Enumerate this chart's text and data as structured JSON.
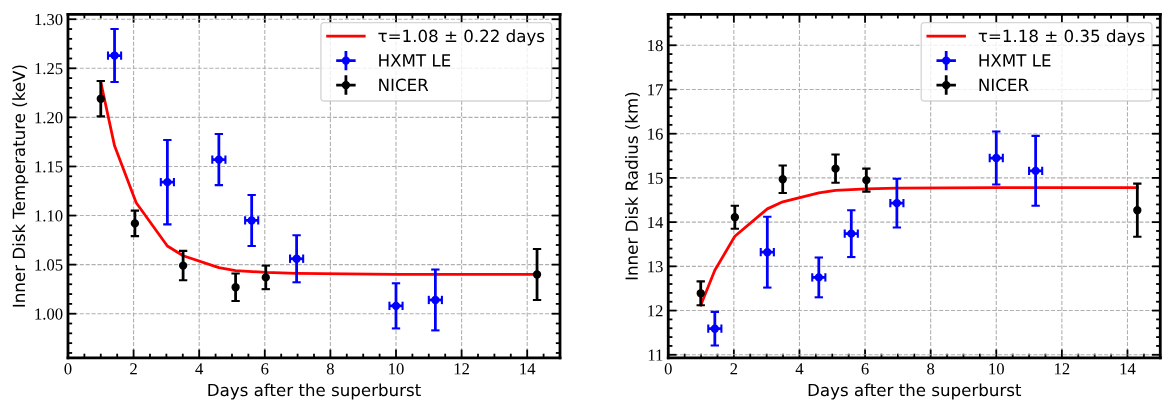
{
  "chart_data": [
    {
      "type": "scatter",
      "xlabel": "Days after the superburst",
      "ylabel": "Inner Disk Temperature (keV)",
      "xlim": [
        0,
        15
      ],
      "ylim": [
        0.955,
        1.305
      ],
      "xticks": [
        0,
        2,
        4,
        6,
        8,
        10,
        12,
        14
      ],
      "yticks": [
        {
          "value": 1.0,
          "label": "1.00"
        },
        1.05,
        {
          "value": 1.1,
          "label": "1.10"
        },
        1.15,
        {
          "value": 1.2,
          "label": "1.20"
        },
        1.25,
        {
          "value": 1.3,
          "label": "1.30"
        }
      ],
      "grid": true,
      "legend": "top right",
      "series": [
        {
          "name": "τ=1.08 ± 0.22 days",
          "type": "line",
          "color": "#ff0000",
          "x": [
            1.0,
            1.42,
            2.08,
            3.03,
            3.51,
            4.6,
            5.11,
            6.03,
            6.97,
            10.0,
            14.3
          ],
          "values": [
            1.236,
            1.171,
            1.113,
            1.069,
            1.059,
            1.047,
            1.044,
            1.042,
            1.041,
            1.04,
            1.04
          ]
        },
        {
          "name": "HXMT LE",
          "color": "#0000ff",
          "marker": "circle",
          "x": [
            1.42,
            3.03,
            4.6,
            5.6,
            6.97,
            10.0,
            11.2
          ],
          "values": [
            1.263,
            1.134,
            1.157,
            1.095,
            1.056,
            1.008,
            1.014
          ],
          "errors": [
            0.027,
            0.043,
            0.026,
            0.026,
            0.024,
            0.023,
            0.031
          ],
          "xerrors": [
            0.2,
            0.2,
            0.2,
            0.2,
            0.2,
            0.2,
            0.2
          ]
        },
        {
          "name": "NICER",
          "color": "#000000",
          "marker": "circle",
          "x": [
            1.0,
            2.04,
            3.51,
            5.11,
            6.03,
            14.3
          ],
          "values": [
            1.219,
            1.092,
            1.049,
            1.027,
            1.037,
            1.04
          ],
          "errors": [
            0.018,
            0.013,
            0.015,
            0.014,
            0.012,
            0.026
          ]
        }
      ]
    },
    {
      "type": "scatter",
      "xlabel": "Days after the superburst",
      "ylabel": "Inner Disk Radius (km)",
      "xlim": [
        0,
        15
      ],
      "ylim": [
        10.93,
        18.7
      ],
      "xticks": [
        0,
        2,
        4,
        6,
        8,
        10,
        12,
        14
      ],
      "yticks": [
        11,
        12,
        13,
        14,
        15,
        16,
        17,
        18
      ],
      "grid": true,
      "legend": "top right",
      "series": [
        {
          "name": "τ=1.18 ± 0.35 days",
          "type": "line",
          "color": "#ff0000",
          "x": [
            0.99,
            1.42,
            2.03,
            3.02,
            3.49,
            4.59,
            5.1,
            6.04,
            6.97,
            10.0,
            14.3
          ],
          "values": [
            12.12,
            12.91,
            13.68,
            14.3,
            14.46,
            14.66,
            14.72,
            14.75,
            14.77,
            14.78,
            14.78
          ]
        },
        {
          "name": "HXMT LE",
          "color": "#0000ff",
          "marker": "circle",
          "x": [
            1.42,
            3.02,
            4.59,
            5.58,
            6.97,
            10.0,
            11.2
          ],
          "values": [
            11.59,
            13.32,
            12.75,
            13.74,
            14.43,
            15.45,
            15.16
          ],
          "errors": [
            0.38,
            0.8,
            0.45,
            0.53,
            0.55,
            0.6,
            0.79
          ],
          "xerrors": [
            0.2,
            0.2,
            0.2,
            0.2,
            0.2,
            0.2,
            0.2
          ]
        },
        {
          "name": "NICER",
          "color": "#000000",
          "marker": "circle",
          "x": [
            0.99,
            2.03,
            3.49,
            5.1,
            6.04,
            14.3
          ],
          "values": [
            12.39,
            14.11,
            14.97,
            15.21,
            14.95,
            14.27
          ],
          "errors": [
            0.27,
            0.26,
            0.31,
            0.32,
            0.26,
            0.6
          ]
        }
      ]
    }
  ]
}
